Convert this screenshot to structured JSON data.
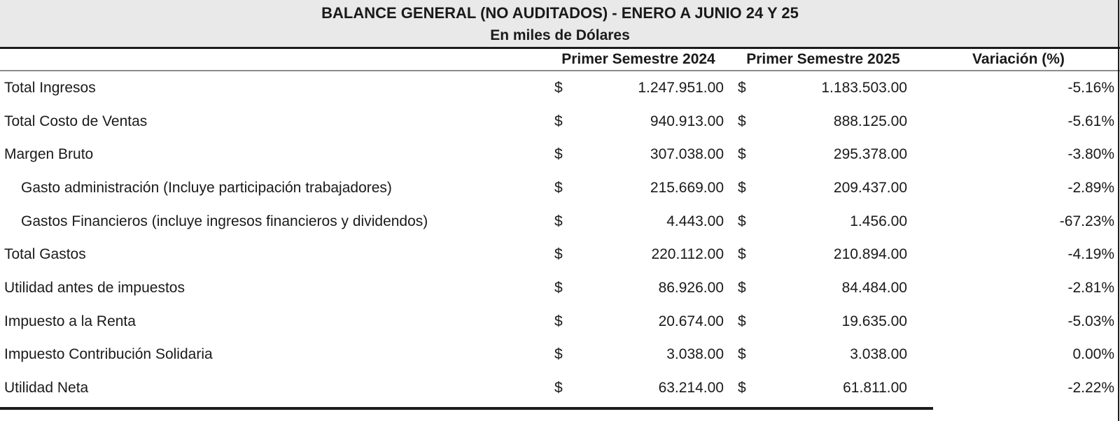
{
  "header": {
    "title": "BALANCE GENERAL (NO AUDITADOS) - ENERO A JUNIO 24 Y 25",
    "subtitle": "En miles de Dólares"
  },
  "columns": {
    "semester_2024": "Primer Semestre 2024",
    "semester_2025": "Primer Semestre 2025",
    "variation": "Variación (%)"
  },
  "currency_symbol": "$",
  "rows": [
    {
      "label": "Total Ingresos",
      "indent": false,
      "v2024": "1.247.951.00",
      "v2025": "1.183.503.00",
      "variation": "-5.16%"
    },
    {
      "label": "Total Costo de Ventas",
      "indent": false,
      "v2024": "940.913.00",
      "v2025": "888.125.00",
      "variation": "-5.61%"
    },
    {
      "label": "Margen Bruto",
      "indent": false,
      "v2024": "307.038.00",
      "v2025": "295.378.00",
      "variation": "-3.80%"
    },
    {
      "label": "Gasto administración (Incluye participación trabajadores)",
      "indent": true,
      "v2024": "215.669.00",
      "v2025": "209.437.00",
      "variation": "-2.89%"
    },
    {
      "label": "Gastos Financieros (incluye ingresos financieros y dividendos)",
      "indent": true,
      "v2024": "4.443.00",
      "v2025": "1.456.00",
      "variation": "-67.23%"
    },
    {
      "label": "Total Gastos",
      "indent": false,
      "v2024": "220.112.00",
      "v2025": "210.894.00",
      "variation": "-4.19%"
    },
    {
      "label": "Utilidad antes de impuestos",
      "indent": false,
      "v2024": "86.926.00",
      "v2025": "84.484.00",
      "variation": "-2.81%"
    },
    {
      "label": "Impuesto a la Renta",
      "indent": false,
      "v2024": "20.674.00",
      "v2025": "19.635.00",
      "variation": "-5.03%"
    },
    {
      "label": "Impuesto Contribución Solidaria",
      "indent": false,
      "v2024": "3.038.00",
      "v2025": "3.038.00",
      "variation": "0.00%"
    },
    {
      "label": "Utilidad Neta",
      "indent": false,
      "v2024": "63.214.00",
      "v2025": "61.811.00",
      "variation": "-2.22%"
    }
  ],
  "colors": {
    "header_bg": "#e9e9e9",
    "text": "#1a1a1a",
    "line_dark": "#1c1c1c",
    "line_gray": "#8c8c8c"
  }
}
